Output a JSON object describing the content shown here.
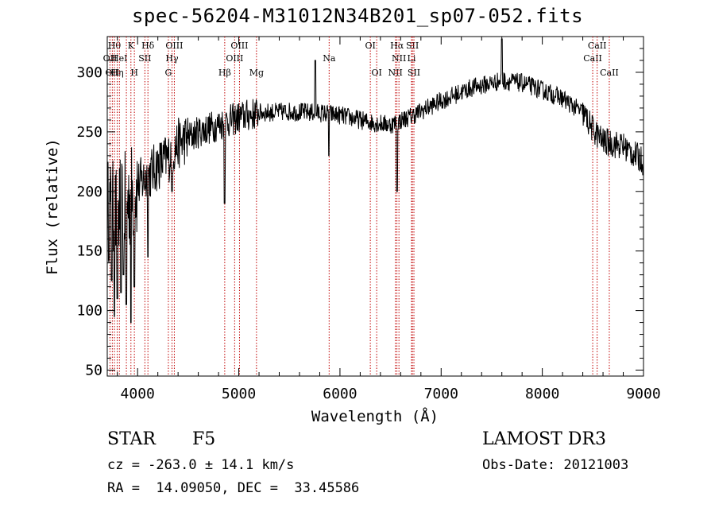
{
  "chart_data": {
    "type": "line",
    "title": "spec-56204-M31012N34B201_sp07-052.fits",
    "xlabel": "Wavelength (Å)",
    "ylabel": "Flux (relative)",
    "xlim": [
      3700,
      9000
    ],
    "ylim": [
      45,
      330
    ],
    "xticks": [
      4000,
      5000,
      6000,
      7000,
      8000,
      9000
    ],
    "xtick_labels": [
      "4000",
      "5000",
      "6000",
      "7000",
      "8000",
      "9000"
    ],
    "yticks": [
      50,
      100,
      150,
      200,
      250,
      300
    ],
    "ytick_labels": [
      "50",
      "100",
      "150",
      "200",
      "250",
      "300"
    ],
    "continuum": [
      {
        "x": 3700,
        "y": 185
      },
      {
        "x": 3800,
        "y": 180
      },
      {
        "x": 3900,
        "y": 192
      },
      {
        "x": 4000,
        "y": 205
      },
      {
        "x": 4100,
        "y": 213
      },
      {
        "x": 4200,
        "y": 222
      },
      {
        "x": 4300,
        "y": 228
      },
      {
        "x": 4400,
        "y": 240
      },
      {
        "x": 4600,
        "y": 250
      },
      {
        "x": 4800,
        "y": 256
      },
      {
        "x": 5000,
        "y": 262
      },
      {
        "x": 5200,
        "y": 266
      },
      {
        "x": 5500,
        "y": 267
      },
      {
        "x": 5800,
        "y": 266
      },
      {
        "x": 6000,
        "y": 264
      },
      {
        "x": 6300,
        "y": 258
      },
      {
        "x": 6500,
        "y": 256
      },
      {
        "x": 6700,
        "y": 263
      },
      {
        "x": 7000,
        "y": 276
      },
      {
        "x": 7300,
        "y": 287
      },
      {
        "x": 7600,
        "y": 293
      },
      {
        "x": 7800,
        "y": 291
      },
      {
        "x": 8000,
        "y": 285
      },
      {
        "x": 8200,
        "y": 278
      },
      {
        "x": 8400,
        "y": 266
      },
      {
        "x": 8500,
        "y": 252
      },
      {
        "x": 8600,
        "y": 242
      },
      {
        "x": 8800,
        "y": 238
      },
      {
        "x": 9000,
        "y": 225
      }
    ],
    "features": [
      {
        "x": 3745,
        "y": 125
      },
      {
        "x": 3770,
        "y": 95
      },
      {
        "x": 3800,
        "y": 110
      },
      {
        "x": 3835,
        "y": 115
      },
      {
        "x": 3860,
        "y": 130
      },
      {
        "x": 3889,
        "y": 105
      },
      {
        "x": 3934,
        "y": 90
      },
      {
        "x": 3968,
        "y": 120
      },
      {
        "x": 4102,
        "y": 145
      },
      {
        "x": 4340,
        "y": 200
      },
      {
        "x": 4861,
        "y": 190
      },
      {
        "x": 5890,
        "y": 230
      },
      {
        "x": 6563,
        "y": 200
      },
      {
        "x": 7600,
        "y": 328
      },
      {
        "x": 5755,
        "y": 310
      }
    ],
    "lines": [
      {
        "x": 3727,
        "label": "OII",
        "row": 2
      },
      {
        "x": 3750,
        "label": "OII",
        "row": 3
      },
      {
        "x": 3771,
        "label": "Hθ",
        "row": 1
      },
      {
        "x": 3798,
        "label": "Hη",
        "row": 3
      },
      {
        "x": 3820,
        "label": "HeI",
        "row": 2
      },
      {
        "x": 3889,
        "label": "",
        "row": 0
      },
      {
        "x": 3934,
        "label": "K",
        "row": 1
      },
      {
        "x": 3968,
        "label": "H",
        "row": 3
      },
      {
        "x": 4072,
        "label": "SII",
        "row": 2
      },
      {
        "x": 4102,
        "label": "Hδ",
        "row": 1
      },
      {
        "x": 4304,
        "label": "G",
        "row": 3
      },
      {
        "x": 4340,
        "label": "Hγ",
        "row": 2
      },
      {
        "x": 4363,
        "label": "OIII",
        "row": 1
      },
      {
        "x": 4861,
        "label": "Hβ",
        "row": 3
      },
      {
        "x": 4959,
        "label": "OIII",
        "row": 2
      },
      {
        "x": 5007,
        "label": "OIII",
        "row": 1
      },
      {
        "x": 5175,
        "label": "Mg",
        "row": 3
      },
      {
        "x": 5893,
        "label": "Na",
        "row": 2
      },
      {
        "x": 6300,
        "label": "OI",
        "row": 1
      },
      {
        "x": 6363,
        "label": "OI",
        "row": 3
      },
      {
        "x": 6548,
        "label": "NII",
        "row": 3
      },
      {
        "x": 6563,
        "label": "Hα",
        "row": 1
      },
      {
        "x": 6583,
        "label": "NII",
        "row": 2
      },
      {
        "x": 6707,
        "label": "Li",
        "row": 2
      },
      {
        "x": 6716,
        "label": "SII",
        "row": 1
      },
      {
        "x": 6731,
        "label": "SII",
        "row": 3
      },
      {
        "x": 8498,
        "label": "CaII",
        "row": 2
      },
      {
        "x": 8542,
        "label": "CaII",
        "row": 1
      },
      {
        "x": 8662,
        "label": "CaII",
        "row": 3
      }
    ]
  },
  "info": {
    "star_class": "STAR",
    "subclass": "F5",
    "survey": "LAMOST DR3",
    "cz": "cz = -263.0 ± 14.1 km/s",
    "obs_date": "Obs-Date: 20121003",
    "coords": "RA =  14.09050, DEC =  33.45586"
  }
}
